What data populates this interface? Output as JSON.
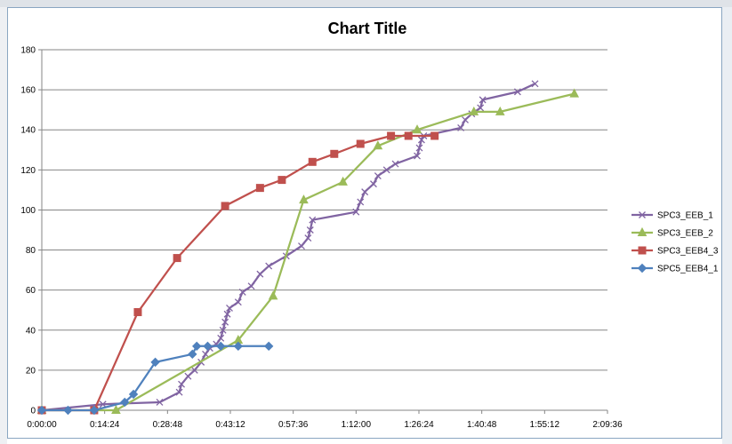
{
  "chart_data": {
    "type": "line",
    "title": "Chart Title",
    "xlabel": "",
    "ylabel": "",
    "x_unit": "h:mm:ss",
    "xlim": [
      "0:00:00",
      "2:09:36"
    ],
    "ylim": [
      0,
      180
    ],
    "x_ticks": [
      "0:00:00",
      "0:14:24",
      "0:28:48",
      "0:43:12",
      "0:57:36",
      "1:12:00",
      "1:26:24",
      "1:40:48",
      "1:55:12",
      "2:09:36"
    ],
    "y_ticks": [
      0,
      20,
      40,
      60,
      80,
      100,
      120,
      140,
      160,
      180
    ],
    "grid": "horizontal",
    "legend_position": "right",
    "series": [
      {
        "name": "SPC3_EEB_1",
        "color": "#8064a2",
        "marker": "x",
        "points": [
          [
            "0:00:00",
            0
          ],
          [
            "0:14:00",
            3
          ],
          [
            "0:27:00",
            4
          ],
          [
            "0:31:30",
            9
          ],
          [
            "0:32:00",
            13
          ],
          [
            "0:33:30",
            17
          ],
          [
            "0:35:00",
            20
          ],
          [
            "0:36:30",
            24
          ],
          [
            "0:37:30",
            28
          ],
          [
            "0:38:30",
            31
          ],
          [
            "0:40:00",
            33
          ],
          [
            "0:41:00",
            36
          ],
          [
            "0:41:30",
            40
          ],
          [
            "0:42:00",
            44
          ],
          [
            "0:42:30",
            48
          ],
          [
            "0:43:00",
            51
          ],
          [
            "0:45:00",
            54
          ],
          [
            "0:46:00",
            59
          ],
          [
            "0:48:00",
            62
          ],
          [
            "0:50:00",
            68
          ],
          [
            "0:52:00",
            72
          ],
          [
            "0:56:00",
            77
          ],
          [
            "0:59:30",
            82
          ],
          [
            "1:01:00",
            86
          ],
          [
            "1:01:30",
            90
          ],
          [
            "1:02:00",
            95
          ],
          [
            "1:12:00",
            99
          ],
          [
            "1:13:00",
            104
          ],
          [
            "1:14:00",
            109
          ],
          [
            "1:16:00",
            113
          ],
          [
            "1:17:00",
            117
          ],
          [
            "1:19:00",
            120
          ],
          [
            "1:21:00",
            123
          ],
          [
            "1:26:00",
            127
          ],
          [
            "1:26:30",
            131
          ],
          [
            "1:27:00",
            135
          ],
          [
            "1:27:30",
            137
          ],
          [
            "1:36:00",
            141
          ],
          [
            "1:37:00",
            145
          ],
          [
            "1:38:30",
            148
          ],
          [
            "1:40:30",
            151
          ],
          [
            "1:41:00",
            155
          ],
          [
            "1:49:00",
            159
          ],
          [
            "1:53:00",
            163
          ]
        ]
      },
      {
        "name": "SPC3_EEB_2",
        "color": "#9bbb59",
        "marker": "triangle",
        "points": [
          [
            "0:00:00",
            0
          ],
          [
            "0:17:00",
            0
          ],
          [
            "0:45:00",
            35
          ],
          [
            "0:53:00",
            57
          ],
          [
            "1:00:00",
            105
          ],
          [
            "1:09:00",
            114
          ],
          [
            "1:17:00",
            132
          ],
          [
            "1:26:00",
            140
          ],
          [
            "1:39:00",
            149
          ],
          [
            "1:45:00",
            149
          ],
          [
            "2:02:00",
            158
          ]
        ]
      },
      {
        "name": "SPC3_EEB4_3",
        "color": "#c0504d",
        "marker": "square",
        "points": [
          [
            "0:00:00",
            0
          ],
          [
            "0:12:00",
            0
          ],
          [
            "0:22:00",
            49
          ],
          [
            "0:31:00",
            76
          ],
          [
            "0:42:00",
            102
          ],
          [
            "0:50:00",
            111
          ],
          [
            "0:55:00",
            115
          ],
          [
            "1:02:00",
            124
          ],
          [
            "1:07:00",
            128
          ],
          [
            "1:13:00",
            133
          ],
          [
            "1:20:00",
            137
          ],
          [
            "1:24:00",
            137
          ],
          [
            "1:30:00",
            137
          ]
        ]
      },
      {
        "name": "SPC5_EEB4_1",
        "color": "#4f81bd",
        "marker": "diamond",
        "points": [
          [
            "0:00:00",
            0
          ],
          [
            "0:06:00",
            0
          ],
          [
            "0:12:00",
            0
          ],
          [
            "0:19:00",
            4
          ],
          [
            "0:21:00",
            8
          ],
          [
            "0:26:00",
            24
          ],
          [
            "0:34:30",
            28
          ],
          [
            "0:35:30",
            32
          ],
          [
            "0:38:00",
            32
          ],
          [
            "0:41:00",
            32
          ],
          [
            "0:45:00",
            32
          ],
          [
            "0:52:00",
            32
          ]
        ]
      }
    ]
  }
}
